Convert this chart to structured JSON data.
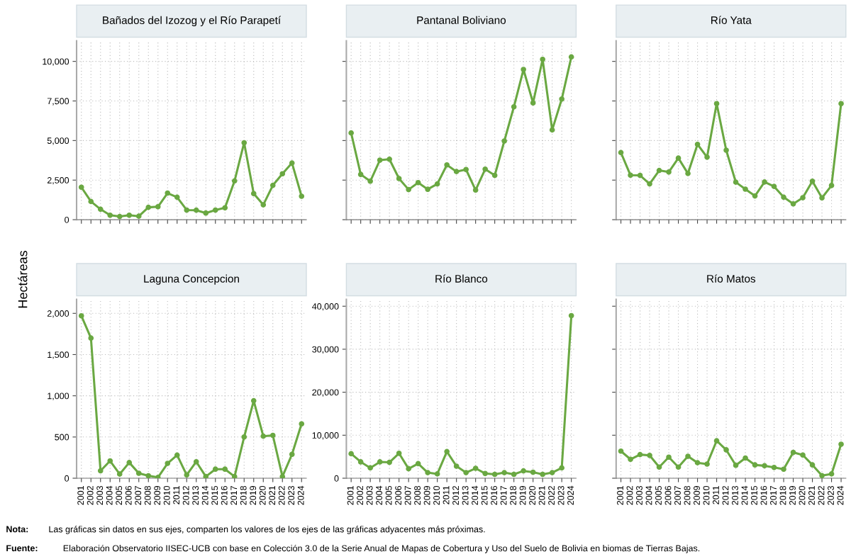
{
  "chart_data": [
    {
      "type": "line",
      "title": "Bañados del Izozog y el Río Parapetí",
      "ylabel": "Hectáreas",
      "categories": [
        "2001",
        "2002",
        "2003",
        "2004",
        "2005",
        "2006",
        "2007",
        "2008",
        "2009",
        "2010",
        "2011",
        "2012",
        "2013",
        "2014",
        "2015",
        "2016",
        "2017",
        "2018",
        "2019",
        "2020",
        "2021",
        "2022",
        "2023",
        "2024"
      ],
      "series": [
        {
          "color": "#6aa842",
          "values": [
            2050,
            1150,
            660,
            280,
            200,
            280,
            220,
            780,
            820,
            1680,
            1420,
            610,
            600,
            420,
            610,
            750,
            2450,
            4860,
            1650,
            940,
            2170,
            2900,
            3580,
            1480
          ]
        }
      ],
      "ylim": [
        0,
        11300
      ],
      "yticks": [
        {
          "value": 0,
          "label": "0"
        },
        {
          "value": 2500,
          "label": "2,500"
        },
        {
          "value": 5000,
          "label": "5,000"
        },
        {
          "value": 7500,
          "label": "7,500"
        },
        {
          "value": 10000,
          "label": "10,000"
        }
      ],
      "grid": true,
      "marker": "circle",
      "line_style": "solid",
      "tick_labels": "y"
    },
    {
      "type": "line",
      "title": "Pantanal Boliviano",
      "categories": [
        "2001",
        "2002",
        "2003",
        "2004",
        "2005",
        "2006",
        "2007",
        "2008",
        "2009",
        "2010",
        "2011",
        "2012",
        "2013",
        "2014",
        "2015",
        "2016",
        "2017",
        "2018",
        "2019",
        "2020",
        "2021",
        "2022",
        "2023",
        "2024"
      ],
      "series": [
        {
          "color": "#6aa842",
          "values": [
            5480,
            2860,
            2430,
            3760,
            3820,
            2600,
            1900,
            2340,
            1920,
            2260,
            3460,
            3040,
            3170,
            1870,
            3190,
            2800,
            4970,
            7130,
            9490,
            7380,
            10130,
            5670,
            7620,
            10280
          ]
        }
      ],
      "ylim": [
        0,
        11300
      ],
      "yticks": [
        {
          "value": 0,
          "label": null
        },
        {
          "value": 2500,
          "label": null
        },
        {
          "value": 5000,
          "label": null
        },
        {
          "value": 7500,
          "label": null
        },
        {
          "value": 10000,
          "label": null
        }
      ],
      "grid": true,
      "marker": "circle",
      "line_style": "solid",
      "tick_labels": false
    },
    {
      "type": "line",
      "title": "Río Yata",
      "categories": [
        "2001",
        "2002",
        "2003",
        "2004",
        "2005",
        "2006",
        "2007",
        "2008",
        "2009",
        "2010",
        "2011",
        "2012",
        "2013",
        "2014",
        "2015",
        "2016",
        "2017",
        "2018",
        "2019",
        "2020",
        "2021",
        "2022",
        "2023",
        "2024"
      ],
      "series": [
        {
          "color": "#6aa842",
          "values": [
            4240,
            2810,
            2800,
            2260,
            3110,
            3010,
            3890,
            2920,
            4760,
            3950,
            7330,
            4390,
            2370,
            1930,
            1500,
            2380,
            2100,
            1420,
            1000,
            1390,
            2430,
            1380,
            2160,
            7330
          ]
        }
      ],
      "ylim": [
        0,
        11300
      ],
      "yticks": [
        {
          "value": 0,
          "label": null
        },
        {
          "value": 2500,
          "label": null
        },
        {
          "value": 5000,
          "label": null
        },
        {
          "value": 7500,
          "label": null
        },
        {
          "value": 10000,
          "label": null
        }
      ],
      "grid": true,
      "marker": "circle",
      "line_style": "solid",
      "tick_labels": false
    },
    {
      "type": "line",
      "title": "Laguna Concepcion",
      "categories": [
        "2001",
        "2002",
        "2003",
        "2004",
        "2005",
        "2006",
        "2007",
        "2008",
        "2009",
        "2010",
        "2011",
        "2012",
        "2013",
        "2014",
        "2015",
        "2016",
        "2017",
        "2018",
        "2019",
        "2020",
        "2021",
        "2022",
        "2023",
        "2024"
      ],
      "series": [
        {
          "color": "#6aa842",
          "values": [
            1970,
            1700,
            90,
            210,
            50,
            190,
            60,
            30,
            10,
            180,
            280,
            40,
            200,
            20,
            110,
            110,
            20,
            500,
            940,
            510,
            520,
            20,
            290,
            660
          ]
        }
      ],
      "ylim": [
        0,
        2170
      ],
      "yticks": [
        {
          "value": 0,
          "label": "0"
        },
        {
          "value": 500,
          "label": "500"
        },
        {
          "value": 1000,
          "label": "1,000"
        },
        {
          "value": 1500,
          "label": "1,500"
        },
        {
          "value": 2000,
          "label": "2,000"
        }
      ],
      "grid": true,
      "marker": "circle",
      "line_style": "solid"
    },
    {
      "type": "line",
      "title": "Río Blanco",
      "categories": [
        "2001",
        "2002",
        "2003",
        "2004",
        "2005",
        "2006",
        "2007",
        "2008",
        "2009",
        "2010",
        "2011",
        "2012",
        "2013",
        "2014",
        "2015",
        "2016",
        "2017",
        "2018",
        "2019",
        "2020",
        "2021",
        "2022",
        "2023",
        "2024"
      ],
      "series": [
        {
          "color": "#6aa842",
          "values": [
            5700,
            3800,
            2400,
            3800,
            3700,
            5800,
            2200,
            3400,
            1300,
            1000,
            6200,
            2800,
            1300,
            2300,
            1100,
            900,
            1300,
            900,
            1700,
            1400,
            900,
            1300,
            2400,
            37800
          ]
        }
      ],
      "ylim": [
        0,
        41600
      ],
      "yticks": [
        {
          "value": 0,
          "label": "0"
        },
        {
          "value": 10000,
          "label": "10,000"
        },
        {
          "value": 20000,
          "label": "20,000"
        },
        {
          "value": 30000,
          "label": "30,000"
        },
        {
          "value": 40000,
          "label": "40,000"
        }
      ],
      "grid": true,
      "marker": "circle",
      "line_style": "solid"
    },
    {
      "type": "line",
      "title": "Río Matos",
      "categories": [
        "2001",
        "2002",
        "2003",
        "2004",
        "2005",
        "2006",
        "2007",
        "2008",
        "2009",
        "2010",
        "2011",
        "2012",
        "2013",
        "2014",
        "2015",
        "2016",
        "2017",
        "2018",
        "2019",
        "2020",
        "2021",
        "2022",
        "2023",
        "2024"
      ],
      "series": [
        {
          "color": "#6aa842",
          "values": [
            6300,
            4400,
            5500,
            5300,
            2600,
            4900,
            2600,
            5100,
            3600,
            3300,
            8700,
            6600,
            3000,
            4700,
            3100,
            2900,
            2500,
            2100,
            6000,
            5400,
            3100,
            600,
            1000,
            7900
          ]
        }
      ],
      "ylim": [
        0,
        41600
      ],
      "yticks": [
        {
          "value": 0,
          "label": null
        },
        {
          "value": 10000,
          "label": null
        },
        {
          "value": 20000,
          "label": null
        },
        {
          "value": 30000,
          "label": null
        },
        {
          "value": 40000,
          "label": null
        }
      ],
      "grid": true,
      "marker": "circle",
      "line_style": "solid",
      "tick_labels": "x",
      "annotations": [
        "Nota:",
        "Las gráficas sin datos en sus ejes, comparten los valores de los ejes de las gráficas adyacentes más próximas.",
        "Fuente:",
        "Elaboración Observatorio IISEC-UCB con base en Colección 3.0 de la Serie Anual de Mapas de Cobertura y Uso del Suelo de Bolivia en biomas de Tierras Bajas."
      ]
    }
  ]
}
